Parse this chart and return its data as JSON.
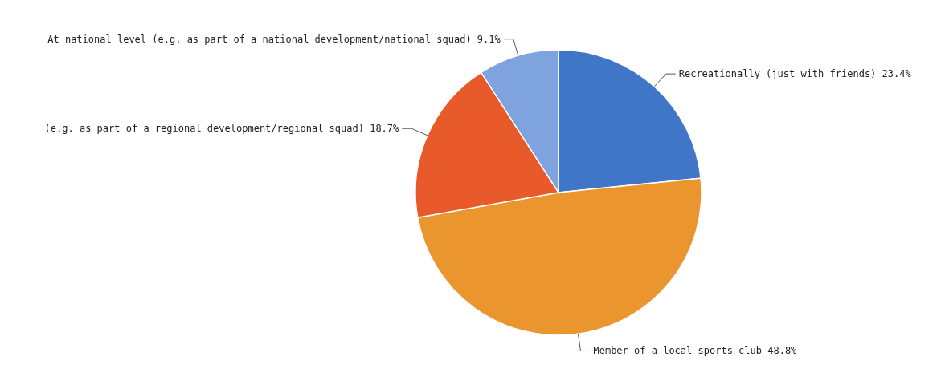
{
  "chart_data": {
    "type": "pie",
    "categories": [
      "Recreationally (just with friends)",
      "Member of a local sports club",
      "(e.g. as part of a regional development/regional squad)",
      "At national level (e.g. as part of a national development/national squad)"
    ],
    "values": [
      23.4,
      48.8,
      18.7,
      9.1
    ],
    "value_labels": [
      "23.4%",
      "48.8%",
      "18.7%",
      "9.1%"
    ],
    "colors": [
      "#3f76c8",
      "#eb952e",
      "#e85a2a",
      "#7ea3de"
    ],
    "legend": false
  }
}
